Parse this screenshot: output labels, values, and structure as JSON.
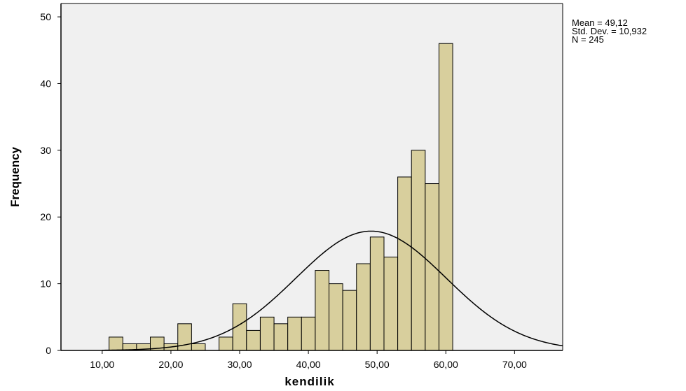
{
  "chart_data": {
    "type": "bar",
    "chart_kind": "histogram with normal curve",
    "xlabel": "kendilik",
    "ylabel": "Frequency",
    "x_ticks": [
      "10,00",
      "20,00",
      "30,00",
      "40,00",
      "50,00",
      "60,00",
      "70,00"
    ],
    "x_tick_values": [
      10,
      20,
      30,
      40,
      50,
      60,
      70
    ],
    "y_ticks": [
      "0",
      "10",
      "20",
      "30",
      "40",
      "50"
    ],
    "y_tick_values": [
      0,
      10,
      20,
      30,
      40,
      50
    ],
    "xlim": [
      4,
      77
    ],
    "ylim": [
      0,
      52
    ],
    "bin_width": 2,
    "bins": [
      {
        "start": 11,
        "value": 2
      },
      {
        "start": 13,
        "value": 1
      },
      {
        "start": 15,
        "value": 1
      },
      {
        "start": 17,
        "value": 2
      },
      {
        "start": 19,
        "value": 1
      },
      {
        "start": 21,
        "value": 4
      },
      {
        "start": 23,
        "value": 1
      },
      {
        "start": 27,
        "value": 2
      },
      {
        "start": 29,
        "value": 7
      },
      {
        "start": 31,
        "value": 3
      },
      {
        "start": 33,
        "value": 5
      },
      {
        "start": 35,
        "value": 4
      },
      {
        "start": 37,
        "value": 5
      },
      {
        "start": 39,
        "value": 5
      },
      {
        "start": 41,
        "value": 12
      },
      {
        "start": 43,
        "value": 10
      },
      {
        "start": 45,
        "value": 9
      },
      {
        "start": 47,
        "value": 13
      },
      {
        "start": 49,
        "value": 17
      },
      {
        "start": 51,
        "value": 14
      },
      {
        "start": 53,
        "value": 26
      },
      {
        "start": 55,
        "value": 30
      },
      {
        "start": 57,
        "value": 25
      },
      {
        "start": 59,
        "value": 46
      }
    ],
    "normal_curve": {
      "mean": 49.12,
      "std_dev": 10.932,
      "n": 245
    },
    "grid": false,
    "plot_background": "#f0f0f0",
    "bar_color": "#d8cf9d",
    "legend_position": "top-right"
  },
  "stats": {
    "mean": "Mean = 49,12",
    "std_dev": "Std. Dev. = 10,932",
    "n": "N = 245"
  }
}
